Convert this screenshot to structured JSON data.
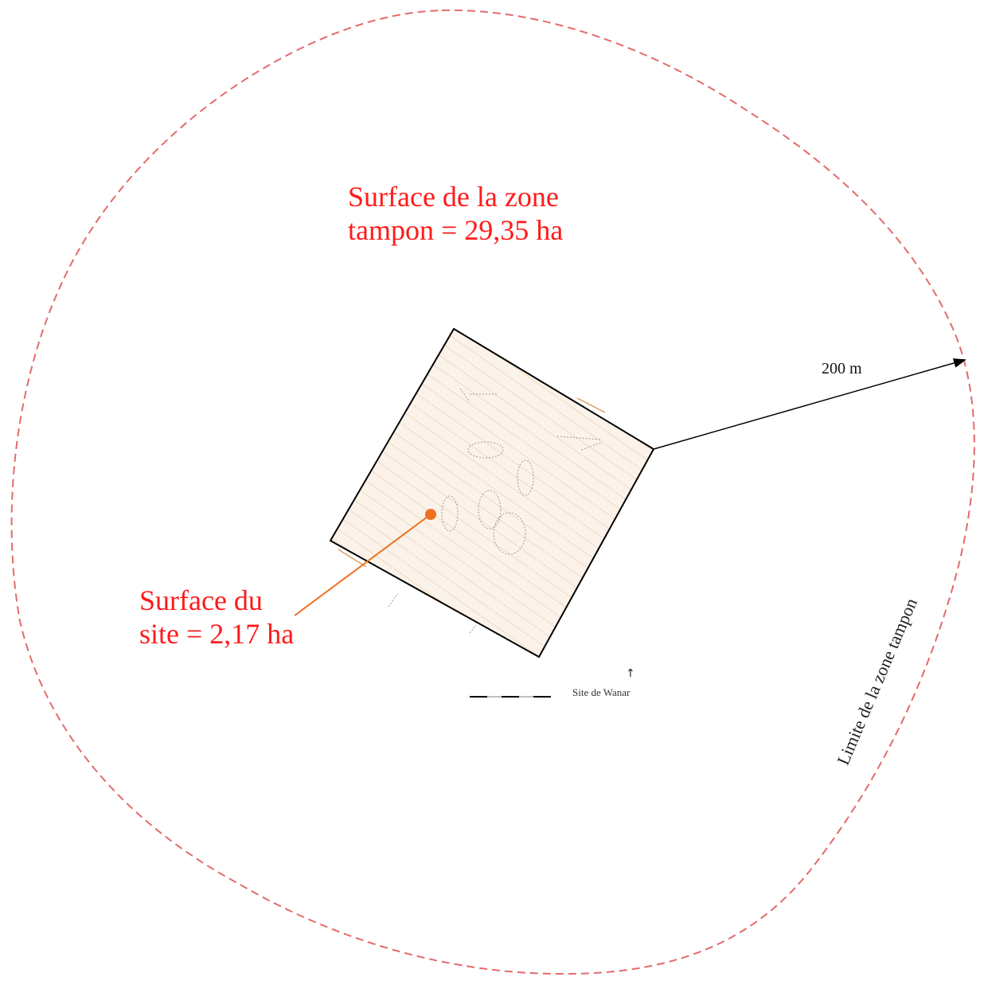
{
  "labels": {
    "buffer_area": "Surface de la zone\ntampon = 29,35 ha",
    "site_area": "Surface du\nsite = 2,17 ha",
    "distance": "200 m",
    "buffer_boundary": "Limite de la zone tampon",
    "site_name": "Site de Wanar"
  },
  "colors": {
    "buffer_boundary": "#e36b6b",
    "label_text": "#ff1a1a",
    "site_marker": "#f07020",
    "site_fill": "#fbf1e6",
    "site_outline": "#000000"
  },
  "icons": {
    "north": "north-arrow-icon",
    "site_point": "site-marker-icon"
  }
}
